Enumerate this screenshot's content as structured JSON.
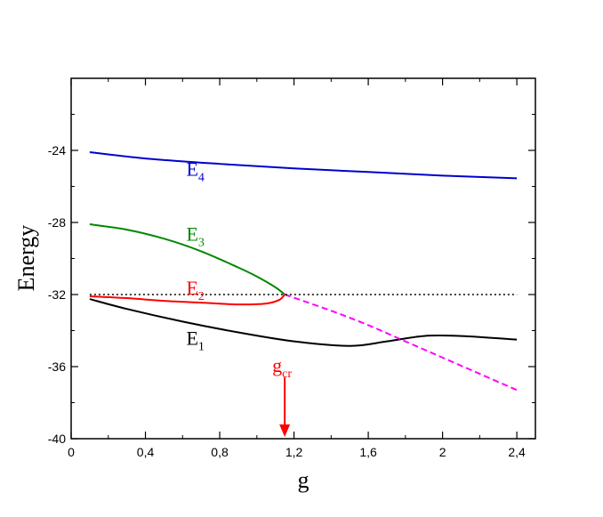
{
  "chart_data": {
    "type": "line",
    "xlabel": "g",
    "ylabel": "Energy",
    "xlim": [
      0,
      2.5
    ],
    "ylim": [
      -40,
      -20
    ],
    "x_ticks": [
      {
        "value": 0,
        "label": "0"
      },
      {
        "value": 0.4,
        "label": "0,4"
      },
      {
        "value": 0.8,
        "label": "0,8"
      },
      {
        "value": 1.2,
        "label": "1,2"
      },
      {
        "value": 1.6,
        "label": "1,6"
      },
      {
        "value": 2.0,
        "label": "2"
      },
      {
        "value": 2.4,
        "label": "2,4"
      }
    ],
    "y_ticks": [
      {
        "value": -24,
        "label": "-24"
      },
      {
        "value": -28,
        "label": "-28"
      },
      {
        "value": -32,
        "label": "-32"
      },
      {
        "value": -36,
        "label": "-36"
      },
      {
        "value": -40,
        "label": "-40"
      }
    ],
    "grid": false,
    "series": [
      {
        "id": "E4",
        "name": "E",
        "sub": "4",
        "color": "#0000cc",
        "style": "solid",
        "label_at": [
          0.62,
          -25.4
        ],
        "points": [
          [
            0.1,
            -24.1
          ],
          [
            0.4,
            -24.45
          ],
          [
            0.8,
            -24.75
          ],
          [
            1.2,
            -25.0
          ],
          [
            1.6,
            -25.2
          ],
          [
            2.0,
            -25.4
          ],
          [
            2.4,
            -25.55
          ]
        ]
      },
      {
        "id": "E3",
        "name": "E",
        "sub": "3",
        "color": "#008800",
        "style": "solid",
        "label_at": [
          0.62,
          -29.0
        ],
        "points": [
          [
            0.1,
            -28.1
          ],
          [
            0.3,
            -28.4
          ],
          [
            0.5,
            -28.9
          ],
          [
            0.7,
            -29.6
          ],
          [
            0.9,
            -30.5
          ],
          [
            1.0,
            -31.0
          ],
          [
            1.1,
            -31.6
          ],
          [
            1.15,
            -32.0
          ]
        ]
      },
      {
        "id": "E2",
        "name": "E",
        "sub": "2",
        "color": "#ff0000",
        "style": "solid",
        "label_at": [
          0.62,
          -32.0
        ],
        "points": [
          [
            0.1,
            -32.1
          ],
          [
            0.3,
            -32.2
          ],
          [
            0.5,
            -32.35
          ],
          [
            0.7,
            -32.45
          ],
          [
            0.9,
            -32.55
          ],
          [
            1.05,
            -32.5
          ],
          [
            1.12,
            -32.3
          ],
          [
            1.15,
            -32.0
          ]
        ]
      },
      {
        "id": "E1",
        "name": "E",
        "sub": "1",
        "color": "#000000",
        "style": "solid",
        "label_at": [
          0.62,
          -34.8
        ],
        "points": [
          [
            0.1,
            -32.25
          ],
          [
            0.3,
            -32.8
          ],
          [
            0.6,
            -33.5
          ],
          [
            0.9,
            -34.1
          ],
          [
            1.2,
            -34.6
          ],
          [
            1.5,
            -34.85
          ],
          [
            1.7,
            -34.6
          ],
          [
            1.9,
            -34.3
          ],
          [
            2.1,
            -34.3
          ],
          [
            2.4,
            -34.5
          ]
        ]
      },
      {
        "id": "Ec",
        "name": "",
        "color": "#ff00ff",
        "style": "dashed",
        "points": [
          [
            1.15,
            -32.0
          ],
          [
            1.4,
            -32.9
          ],
          [
            1.6,
            -33.7
          ],
          [
            1.8,
            -34.6
          ],
          [
            2.0,
            -35.5
          ],
          [
            2.2,
            -36.4
          ],
          [
            2.4,
            -37.3
          ]
        ]
      },
      {
        "id": "threshold",
        "name": "",
        "color": "#000000",
        "style": "dotted",
        "points": [
          [
            0.1,
            -32.0
          ],
          [
            2.4,
            -32.0
          ]
        ]
      }
    ],
    "annotations": [
      {
        "text": "g",
        "sub": "cr",
        "color": "#ff0000",
        "x": 1.15,
        "arrow_from_y": -36.6,
        "arrow_to_y": -39.9
      }
    ]
  }
}
